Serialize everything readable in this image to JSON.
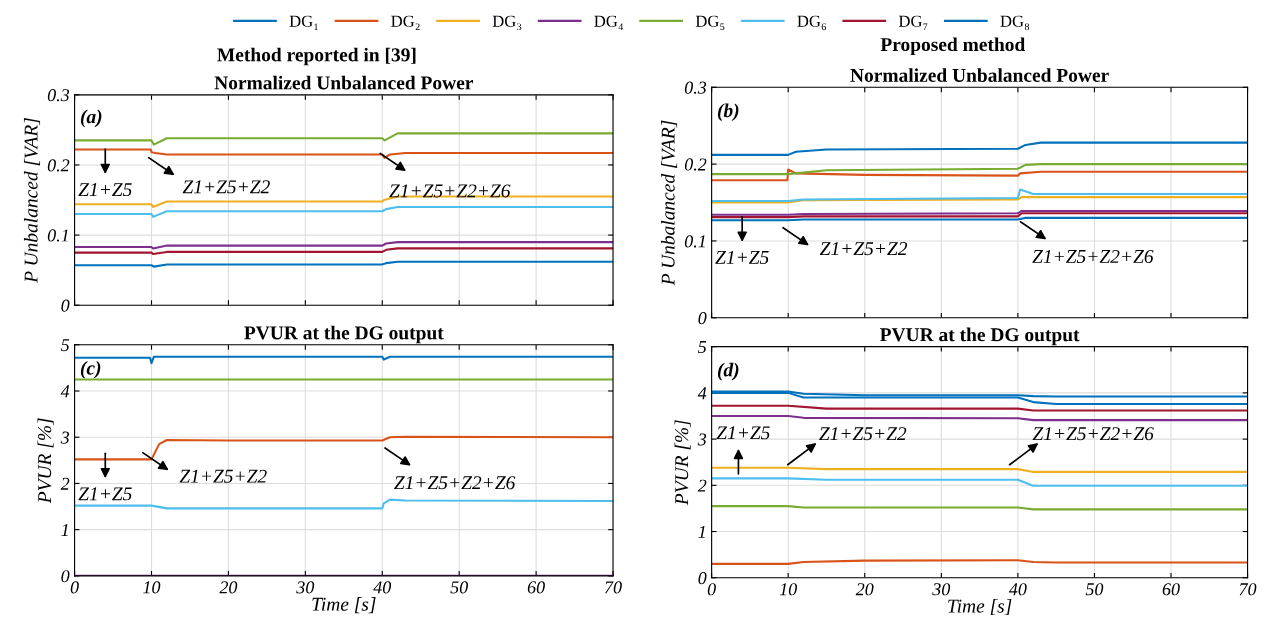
{
  "chart_data": [
    {
      "type": "line",
      "title": "Method reported in [39]",
      "subtitle": "Normalized Unbalanced Power",
      "ylabel": "P Unbalanced [VAR]",
      "xlim": [
        0,
        70
      ],
      "xticks": [
        0,
        10,
        20,
        30,
        40,
        50,
        60,
        70
      ],
      "ylim": [
        0,
        0.3
      ],
      "yticks": [
        0,
        0.1,
        0.2,
        0.3
      ],
      "grid": true,
      "tick_labels": "y",
      "annotations": [
        "(a)",
        "Z1+Z5",
        "Z1+Z5+Z2",
        "Z1+Z5+Z2+Z6"
      ],
      "series": [
        {
          "color": "#0072bd",
          "x": [
            0,
            10,
            10.3,
            12,
            40,
            40.5,
            42,
            70
          ],
          "values": [
            0.057,
            0.057,
            0.055,
            0.058,
            0.058,
            0.06,
            0.062,
            0.062
          ]
        },
        {
          "color": "#d95319",
          "x": [
            0,
            9.9,
            10,
            10.5,
            12,
            40,
            40.3,
            41,
            43,
            70
          ],
          "values": [
            0.222,
            0.222,
            0.218,
            0.217,
            0.215,
            0.215,
            0.21,
            0.215,
            0.217,
            0.217
          ]
        },
        {
          "color": "#edb120",
          "x": [
            0,
            10,
            10.2,
            12,
            40,
            40.2,
            42,
            70
          ],
          "values": [
            0.144,
            0.144,
            0.14,
            0.148,
            0.148,
            0.15,
            0.155,
            0.155
          ]
        },
        {
          "color": "#7e2f8e",
          "x": [
            0,
            10,
            10.2,
            12,
            40,
            40.5,
            42,
            70
          ],
          "values": [
            0.083,
            0.083,
            0.081,
            0.085,
            0.085,
            0.088,
            0.09,
            0.09
          ]
        },
        {
          "color": "#77ac30",
          "x": [
            0,
            10,
            10.3,
            12,
            40,
            40.3,
            42,
            70
          ],
          "values": [
            0.235,
            0.235,
            0.229,
            0.238,
            0.238,
            0.235,
            0.245,
            0.245
          ]
        },
        {
          "color": "#4dbeee",
          "x": [
            0,
            10,
            10.2,
            12,
            40,
            40.5,
            42,
            70
          ],
          "values": [
            0.13,
            0.13,
            0.126,
            0.134,
            0.134,
            0.137,
            0.14,
            0.14
          ]
        },
        {
          "color": "#a2142f",
          "x": [
            0,
            10,
            10.2,
            12,
            40,
            40.5,
            42,
            70
          ],
          "values": [
            0.075,
            0.075,
            0.073,
            0.076,
            0.076,
            0.079,
            0.081,
            0.081
          ]
        }
      ]
    },
    {
      "type": "line",
      "title": "Proposed method",
      "subtitle": "Normalized Unbalanced Power",
      "ylabel": "P Unbalanced [VAR]",
      "xlim": [
        0,
        70
      ],
      "xticks": [
        0,
        10,
        20,
        30,
        40,
        50,
        60,
        70
      ],
      "ylim": [
        0,
        0.3
      ],
      "yticks": [
        0,
        0.1,
        0.2,
        0.3
      ],
      "grid": true,
      "tick_labels": "y",
      "legend": "top",
      "annotations": [
        "(b)",
        "Z1+Z5",
        "Z1+Z5+Z2",
        "Z1+Z5+Z2+Z6"
      ],
      "series": [
        {
          "name": "DG₁",
          "color": "#0072bd",
          "x": [
            0,
            10,
            12,
            40,
            41,
            70
          ],
          "values": [
            0.127,
            0.127,
            0.128,
            0.128,
            0.13,
            0.13
          ]
        },
        {
          "name": "DG₂",
          "color": "#d95319",
          "x": [
            0,
            9.9,
            10,
            11,
            20,
            40,
            40.3,
            43,
            70
          ],
          "values": [
            0.179,
            0.179,
            0.193,
            0.188,
            0.186,
            0.185,
            0.188,
            0.19,
            0.19
          ]
        },
        {
          "name": "DG₃",
          "color": "#edb120",
          "x": [
            0,
            10,
            12,
            40,
            40.5,
            70
          ],
          "values": [
            0.15,
            0.15,
            0.153,
            0.154,
            0.157,
            0.157
          ]
        },
        {
          "name": "DG₄",
          "color": "#7e2f8e",
          "x": [
            0,
            10,
            12,
            40,
            40.5,
            70
          ],
          "values": [
            0.134,
            0.134,
            0.135,
            0.136,
            0.139,
            0.139
          ]
        },
        {
          "name": "DG₅",
          "color": "#77ac30",
          "x": [
            0,
            10,
            15,
            40,
            41,
            43,
            70
          ],
          "values": [
            0.187,
            0.187,
            0.192,
            0.194,
            0.199,
            0.2,
            0.2
          ]
        },
        {
          "name": "DG₆",
          "color": "#4dbeee",
          "x": [
            0,
            10,
            12,
            40,
            40.3,
            42,
            70
          ],
          "values": [
            0.152,
            0.152,
            0.154,
            0.156,
            0.167,
            0.161,
            0.161
          ]
        },
        {
          "name": "DG₇",
          "color": "#a2142f",
          "x": [
            0,
            10,
            12,
            40,
            40.5,
            70
          ],
          "values": [
            0.131,
            0.131,
            0.132,
            0.132,
            0.136,
            0.136
          ]
        },
        {
          "name": "DG₈",
          "color": "#0072bd",
          "x": [
            0,
            10,
            11,
            15,
            40,
            41,
            43,
            70
          ],
          "values": [
            0.212,
            0.212,
            0.216,
            0.219,
            0.22,
            0.225,
            0.228,
            0.228
          ]
        }
      ]
    },
    {
      "type": "line",
      "title": "PVUR at the DG output",
      "ylabel": "PVUR [%]",
      "xlabel": "Time [s]",
      "xlim": [
        0,
        70
      ],
      "xticks": [
        0,
        10,
        20,
        30,
        40,
        50,
        60,
        70
      ],
      "ylim": [
        0,
        5
      ],
      "yticks": [
        0,
        1,
        2,
        3,
        4,
        5
      ],
      "grid": true,
      "annotations": [
        "(c)",
        "Z1+Z5",
        "Z1+Z5+Z2",
        "Z1+Z5+Z2+Z6"
      ],
      "series": [
        {
          "color": "#0072bd",
          "x": [
            0,
            9.8,
            10,
            10.3,
            12,
            40,
            40.2,
            41,
            70
          ],
          "values": [
            4.72,
            4.72,
            4.6,
            4.74,
            4.74,
            4.74,
            4.68,
            4.74,
            4.74
          ]
        },
        {
          "color": "#d95319",
          "x": [
            0,
            10,
            11,
            12,
            20,
            40,
            41,
            43,
            70
          ],
          "values": [
            2.52,
            2.52,
            2.85,
            2.94,
            2.93,
            2.93,
            3.0,
            3.01,
            3.0
          ]
        },
        {
          "color": "#7e2f8e",
          "x": [
            0,
            70
          ],
          "values": [
            0,
            0
          ]
        },
        {
          "color": "#77ac30",
          "x": [
            0,
            70
          ],
          "values": [
            4.25,
            4.25
          ]
        },
        {
          "color": "#4dbeee",
          "x": [
            0,
            10,
            12,
            40,
            40.2,
            41,
            43,
            70
          ],
          "values": [
            1.52,
            1.52,
            1.46,
            1.46,
            1.57,
            1.65,
            1.63,
            1.62
          ]
        }
      ]
    },
    {
      "type": "line",
      "title": "PVUR at the DG output",
      "ylabel": "PVUR [%]",
      "xlabel": "Time [s]",
      "xlim": [
        0,
        70
      ],
      "xticks": [
        0,
        10,
        20,
        30,
        40,
        50,
        60,
        70
      ],
      "ylim": [
        0,
        5
      ],
      "yticks": [
        0,
        1,
        2,
        3,
        4,
        5
      ],
      "grid": true,
      "annotations": [
        "(d)",
        "Z1+Z5",
        "Z1+Z5+Z2",
        "Z1+Z5+Z2+Z6"
      ],
      "series": [
        {
          "color": "#0072bd",
          "x": [
            0,
            10,
            12,
            20,
            40,
            42,
            45,
            70
          ],
          "values": [
            4.03,
            4.03,
            3.98,
            3.95,
            3.95,
            3.93,
            3.92,
            3.92
          ]
        },
        {
          "color": "#d95319",
          "x": [
            0,
            10,
            12,
            20,
            40,
            42,
            45,
            70
          ],
          "values": [
            0.3,
            0.3,
            0.34,
            0.37,
            0.38,
            0.34,
            0.33,
            0.33
          ]
        },
        {
          "color": "#edb120",
          "x": [
            0,
            10,
            15,
            40,
            42,
            70
          ],
          "values": [
            2.38,
            2.38,
            2.35,
            2.35,
            2.29,
            2.29
          ]
        },
        {
          "color": "#7e2f8e",
          "x": [
            0,
            10,
            12,
            40,
            42,
            70
          ],
          "values": [
            3.5,
            3.5,
            3.46,
            3.45,
            3.41,
            3.41
          ]
        },
        {
          "color": "#77ac30",
          "x": [
            0,
            10,
            12,
            40,
            42,
            70
          ],
          "values": [
            1.55,
            1.55,
            1.52,
            1.52,
            1.48,
            1.48
          ]
        },
        {
          "color": "#4dbeee",
          "x": [
            0,
            10,
            15,
            40,
            42,
            70
          ],
          "values": [
            2.15,
            2.15,
            2.12,
            2.12,
            1.99,
            1.99
          ]
        },
        {
          "color": "#a2142f",
          "x": [
            0,
            10,
            15,
            40,
            42,
            70
          ],
          "values": [
            3.72,
            3.72,
            3.66,
            3.66,
            3.62,
            3.62
          ]
        },
        {
          "color": "#0072bd",
          "x": [
            0,
            10,
            12,
            40,
            42,
            45,
            70
          ],
          "values": [
            4.0,
            4.0,
            3.9,
            3.9,
            3.8,
            3.76,
            3.76
          ]
        }
      ]
    }
  ]
}
